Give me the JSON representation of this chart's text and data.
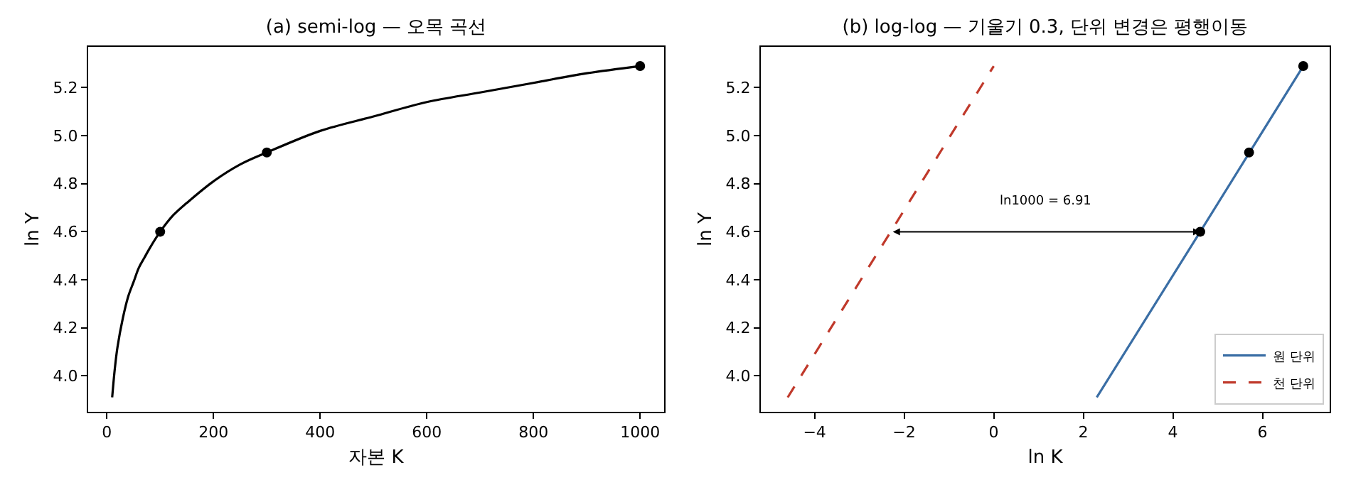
{
  "chart_data": [
    {
      "type": "line",
      "title": "(a) semi-log — 오목 곡선",
      "xlabel": "자본 K",
      "ylabel": "ln Y",
      "xlim": [
        -35,
        1045
      ],
      "ylim": [
        3.85,
        5.37
      ],
      "xticks": [
        0,
        200,
        400,
        600,
        800,
        1000
      ],
      "yticks": [
        {
          "value": 4,
          "label": "4.0"
        },
        {
          "value": 4.2,
          "label": "4.2"
        },
        {
          "value": 4.4,
          "label": "4.4"
        },
        {
          "value": 4.6,
          "label": "4.6"
        },
        {
          "value": 4.8,
          "label": "4.8"
        },
        {
          "value": 5,
          "label": "5.0"
        },
        {
          "value": 5.2,
          "label": "5.2"
        }
      ],
      "grid": false,
      "legend": false,
      "series": [
        {
          "color": "#000000",
          "marker": "none",
          "line_style": "solid",
          "x": [
            10,
            15,
            20,
            30,
            40,
            50,
            60,
            70,
            80,
            100,
            125,
            150,
            200,
            250,
            300,
            400,
            500,
            600,
            700,
            800,
            900,
            1000
          ],
          "values": [
            3.91,
            4.03,
            4.12,
            4.24,
            4.33,
            4.39,
            4.45,
            4.49,
            4.53,
            4.6,
            4.67,
            4.72,
            4.81,
            4.88,
            4.93,
            5.02,
            5.08,
            5.14,
            5.18,
            5.22,
            5.26,
            5.29
          ]
        },
        {
          "type": "scatter",
          "color": "#000000",
          "marker": "circle",
          "x": [
            100,
            300,
            1000
          ],
          "values": [
            4.6,
            4.93,
            5.29
          ]
        }
      ]
    },
    {
      "type": "line",
      "title": "(b) log-log — 기울기 0.3, 단위 변경은 평행이동",
      "xlabel": "ln K",
      "ylabel": "ln Y",
      "xlim": [
        -5.2,
        7.5
      ],
      "ylim": [
        3.85,
        5.37
      ],
      "xticks": [
        {
          "value": -4,
          "label": "−4"
        },
        {
          "value": -2,
          "label": "−2"
        },
        0,
        2,
        4,
        6
      ],
      "yticks": [
        {
          "value": 4,
          "label": "4.0"
        },
        {
          "value": 4.2,
          "label": "4.2"
        },
        {
          "value": 4.4,
          "label": "4.4"
        },
        {
          "value": 4.6,
          "label": "4.6"
        },
        {
          "value": 4.8,
          "label": "4.8"
        },
        {
          "value": 5,
          "label": "5.0"
        },
        {
          "value": 5.2,
          "label": "5.2"
        }
      ],
      "grid": false,
      "legend": "bottom right",
      "annotations": [
        "ln1000 = 6.91"
      ],
      "series": [
        {
          "name": "원 단위",
          "color": "#3a6ea5",
          "marker": "none",
          "line_style": "solid",
          "x": [
            2.3,
            4.61,
            6.91
          ],
          "values": [
            3.91,
            4.6,
            5.29
          ]
        },
        {
          "name": "천 단위",
          "color": "#c0392b",
          "marker": "none",
          "line_style": "dashed",
          "x": [
            -4.6,
            -2.3,
            0
          ],
          "values": [
            3.91,
            4.6,
            5.29
          ]
        },
        {
          "type": "scatter",
          "color": "#000000",
          "marker": "circle",
          "x": [
            4.61,
            5.7,
            6.91
          ],
          "values": [
            4.6,
            4.93,
            5.29
          ]
        }
      ]
    }
  ]
}
